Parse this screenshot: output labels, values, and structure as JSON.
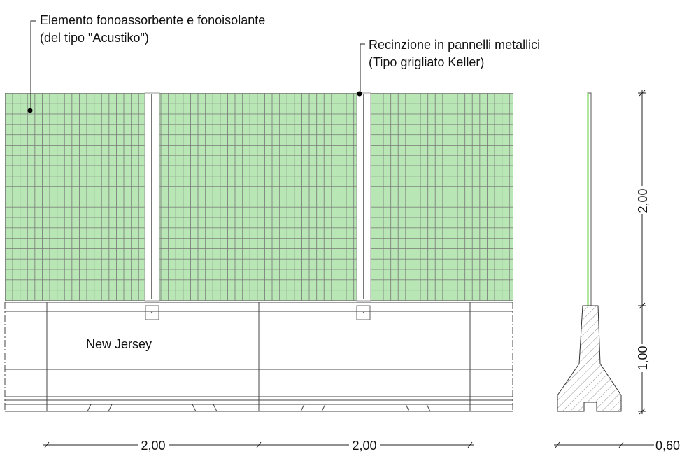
{
  "annotations": [
    {
      "line1": "Elemento fonoassorbente e fonoisolante",
      "line2": "(del tipo \"Acustiko\")"
    },
    {
      "line1": "Recinzione in pannelli metallici",
      "line2": "(Tipo grigliato Keller)"
    }
  ],
  "labels": {
    "barrier": "New Jersey"
  },
  "dimensions": {
    "panel_height": "2,00",
    "barrier_height": "1,00",
    "span_1": "2,00",
    "span_2": "2,00",
    "barrier_width": "0,60"
  }
}
